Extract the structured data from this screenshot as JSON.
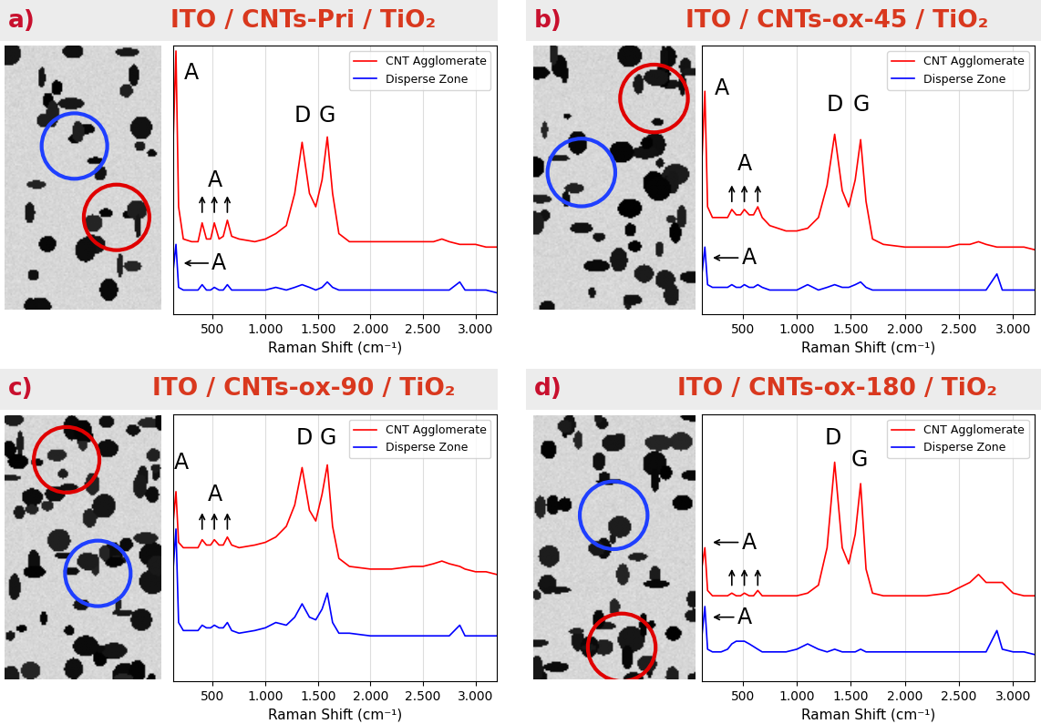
{
  "chart_data": [
    {
      "panel": "a)",
      "title": "ITO / CNTs-Pri / TiO₂",
      "type": "line",
      "xlabel": "Raman Shift (cm⁻¹)",
      "x": [
        120,
        150,
        175,
        220,
        300,
        360,
        399,
        440,
        480,
        515,
        560,
        600,
        639,
        680,
        750,
        900,
        1000,
        1100,
        1200,
        1280,
        1350,
        1420,
        1480,
        1540,
        1590,
        1640,
        1700,
        1800,
        2000,
        2200,
        2400,
        2500,
        2600,
        2680,
        2750,
        2850,
        2900,
        3000,
        3100,
        3200
      ],
      "xlim": [
        120,
        3200
      ],
      "xticks": [
        500,
        {
          "value": 1000,
          "label": "1.000"
        },
        {
          "value": 1500,
          "label": "1.500"
        },
        {
          "value": 2000,
          "label": "2.000"
        },
        {
          "value": 2500,
          "label": "2.500"
        },
        {
          "value": 3000,
          "label": "3.000"
        }
      ],
      "ylim": [
        0,
        100
      ],
      "tick_labels": "x",
      "grid": true,
      "legend": "upper right",
      "series": [
        {
          "name": "CNT Agglomerate",
          "color": "#ff0000",
          "values": [
            60,
            98,
            40,
            28,
            27,
            27,
            34,
            28,
            28,
            34,
            28,
            29,
            35,
            29,
            28,
            27,
            28,
            30,
            33,
            45,
            64,
            45,
            40,
            50,
            66,
            45,
            30,
            27,
            27,
            27,
            27,
            27,
            27,
            28,
            27,
            26,
            26,
            26,
            25,
            25
          ]
        },
        {
          "name": "Disperse Zone",
          "color": "#0000ff",
          "values": [
            15,
            26,
            10,
            9,
            9,
            9,
            11,
            9,
            9,
            10,
            9,
            9,
            11,
            9,
            9,
            9,
            9,
            10,
            9,
            10,
            11,
            10,
            9,
            10,
            12,
            10,
            9,
            9,
            9,
            9,
            9,
            9,
            9,
            9,
            9,
            12,
            9,
            9,
            9,
            8
          ]
        }
      ],
      "annotations": [
        {
          "text": "A",
          "x": 300,
          "y": 90
        },
        {
          "text": "A",
          "x": 520,
          "y": 50
        },
        {
          "text": "D",
          "x": 1350,
          "y": 74
        },
        {
          "text": "G",
          "x": 1590,
          "y": 74
        },
        {
          "text": "A",
          "x": 560,
          "y": 19
        }
      ],
      "arrows": [
        {
          "from": [
            399,
            37
          ],
          "to": [
            399,
            45
          ]
        },
        {
          "from": [
            515,
            37
          ],
          "to": [
            515,
            45
          ]
        },
        {
          "from": [
            639,
            37
          ],
          "to": [
            639,
            45
          ]
        },
        {
          "from": [
            480,
            19
          ],
          "to": [
            200,
            19
          ]
        }
      ]
    },
    {
      "panel": "b)",
      "title": "ITO / CNTs-ox-45 / TiO₂",
      "type": "line",
      "xlabel": "Raman Shift (cm⁻¹)",
      "x": [
        120,
        150,
        175,
        220,
        300,
        360,
        399,
        440,
        480,
        515,
        560,
        600,
        639,
        680,
        750,
        900,
        1000,
        1100,
        1200,
        1280,
        1350,
        1420,
        1480,
        1540,
        1590,
        1640,
        1700,
        1800,
        2000,
        2200,
        2400,
        2500,
        2600,
        2680,
        2750,
        2850,
        2900,
        3000,
        3100,
        3200
      ],
      "xlim": [
        120,
        3200
      ],
      "xticks": [
        500,
        {
          "value": 1000,
          "label": "1.000"
        },
        {
          "value": 1500,
          "label": "1.500"
        },
        {
          "value": 2000,
          "label": "2.000"
        },
        {
          "value": 2500,
          "label": "2.500"
        },
        {
          "value": 3000,
          "label": "3.000"
        }
      ],
      "ylim": [
        0,
        100
      ],
      "tick_labels": "x",
      "grid": true,
      "legend": "upper right",
      "series": [
        {
          "name": "CNT Agglomerate",
          "color": "#ff0000",
          "values": [
            55,
            83,
            40,
            36,
            36,
            36,
            39,
            37,
            37,
            39,
            37,
            37,
            40,
            36,
            33,
            31,
            31,
            32,
            36,
            48,
            67,
            46,
            40,
            50,
            65,
            42,
            28,
            26,
            25,
            25,
            25,
            26,
            26,
            27,
            26,
            25,
            25,
            25,
            25,
            24
          ]
        },
        {
          "name": "Disperse Zone",
          "color": "#0000ff",
          "values": [
            14,
            25,
            11,
            10,
            10,
            10,
            11,
            10,
            10,
            11,
            10,
            10,
            11,
            10,
            9,
            9,
            9,
            11,
            9,
            10,
            11,
            10,
            10,
            11,
            12,
            10,
            9,
            9,
            9,
            9,
            9,
            9,
            9,
            9,
            9,
            15,
            9,
            9,
            9,
            9
          ]
        }
      ],
      "annotations": [
        {
          "text": "A",
          "x": 310,
          "y": 84
        },
        {
          "text": "A",
          "x": 520,
          "y": 56
        },
        {
          "text": "D",
          "x": 1350,
          "y": 78
        },
        {
          "text": "G",
          "x": 1600,
          "y": 78
        },
        {
          "text": "A",
          "x": 560,
          "y": 21
        }
      ],
      "arrows": [
        {
          "from": [
            399,
            41
          ],
          "to": [
            399,
            49
          ]
        },
        {
          "from": [
            515,
            41
          ],
          "to": [
            515,
            49
          ]
        },
        {
          "from": [
            639,
            41
          ],
          "to": [
            639,
            49
          ]
        },
        {
          "from": [
            480,
            21
          ],
          "to": [
            200,
            21
          ]
        }
      ]
    },
    {
      "panel": "c)",
      "title": "ITO / CNTs-ox-90 / TiO₂",
      "type": "line",
      "xlabel": "Raman Shift (cm⁻¹)",
      "x": [
        120,
        150,
        175,
        220,
        300,
        360,
        399,
        440,
        480,
        515,
        560,
        600,
        639,
        680,
        750,
        900,
        1000,
        1100,
        1200,
        1280,
        1350,
        1420,
        1480,
        1540,
        1590,
        1640,
        1700,
        1800,
        2000,
        2200,
        2400,
        2500,
        2600,
        2680,
        2750,
        2850,
        2900,
        3000,
        3100,
        3200
      ],
      "xlim": [
        120,
        3200
      ],
      "xticks": [
        500,
        {
          "value": 1000,
          "label": "1.000"
        },
        {
          "value": 1500,
          "label": "1.500"
        },
        {
          "value": 2000,
          "label": "2.000"
        },
        {
          "value": 2500,
          "label": "2.500"
        },
        {
          "value": 3000,
          "label": "3.000"
        }
      ],
      "ylim": [
        0,
        100
      ],
      "tick_labels": "x",
      "grid": true,
      "legend": "upper right",
      "series": [
        {
          "name": "CNT Agglomerate",
          "color": "#ff0000",
          "values": [
            58,
            71,
            52,
            50,
            50,
            50,
            53,
            51,
            51,
            53,
            51,
            51,
            54,
            51,
            50,
            51,
            52,
            54,
            58,
            66,
            80,
            64,
            60,
            70,
            81,
            58,
            46,
            43,
            42,
            42,
            43,
            43,
            44,
            45,
            44,
            43,
            42,
            41,
            41,
            40
          ]
        },
        {
          "name": "Disperse Zone",
          "color": "#0000ff",
          "values": [
            40,
            57,
            22,
            19,
            19,
            19,
            21,
            20,
            20,
            21,
            20,
            20,
            22,
            19,
            18,
            19,
            20,
            22,
            21,
            24,
            29,
            24,
            23,
            27,
            33,
            22,
            18,
            18,
            17,
            17,
            17,
            17,
            17,
            17,
            17,
            21,
            17,
            17,
            17,
            17
          ]
        }
      ],
      "annotations": [
        {
          "text": "A",
          "x": 200,
          "y": 82
        },
        {
          "text": "A",
          "x": 520,
          "y": 70
        },
        {
          "text": "D",
          "x": 1370,
          "y": 91
        },
        {
          "text": "G",
          "x": 1600,
          "y": 91
        }
      ],
      "arrows": [
        {
          "from": [
            399,
            56
          ],
          "to": [
            399,
            64
          ]
        },
        {
          "from": [
            515,
            56
          ],
          "to": [
            515,
            64
          ]
        },
        {
          "from": [
            639,
            56
          ],
          "to": [
            639,
            64
          ]
        }
      ]
    },
    {
      "panel": "d)",
      "title": "ITO / CNTs-ox-180 / TiO₂",
      "type": "line",
      "xlabel": "Raman Shift (cm⁻¹)",
      "x": [
        120,
        150,
        175,
        220,
        300,
        360,
        399,
        440,
        480,
        515,
        560,
        600,
        639,
        680,
        750,
        900,
        1000,
        1100,
        1200,
        1280,
        1350,
        1420,
        1480,
        1540,
        1590,
        1640,
        1700,
        1800,
        2000,
        2200,
        2400,
        2500,
        2600,
        2680,
        2750,
        2850,
        2900,
        3000,
        3100,
        3200
      ],
      "xlim": [
        120,
        3200
      ],
      "xticks": [
        500,
        {
          "value": 1000,
          "label": "1.000"
        },
        {
          "value": 1500,
          "label": "1.500"
        },
        {
          "value": 2000,
          "label": "2.000"
        },
        {
          "value": 2500,
          "label": "2.500"
        },
        {
          "value": 3000,
          "label": "3.000"
        }
      ],
      "ylim": [
        0,
        100
      ],
      "tick_labels": "x",
      "grid": true,
      "legend": "upper right",
      "series": [
        {
          "name": "CNT Agglomerate",
          "color": "#ff0000",
          "values": [
            42,
            50,
            34,
            32,
            32,
            32,
            33,
            32,
            32,
            33,
            32,
            32,
            34,
            32,
            32,
            32,
            32,
            33,
            36,
            50,
            82,
            50,
            44,
            55,
            74,
            42,
            33,
            32,
            32,
            32,
            33,
            35,
            37,
            40,
            37,
            37,
            37,
            33,
            32,
            32
          ]
        },
        {
          "name": "Disperse Zone",
          "color": "#0000ff",
          "values": [
            16,
            28,
            12,
            11,
            11,
            12,
            14,
            15,
            15,
            15,
            14,
            13,
            12,
            11,
            11,
            11,
            12,
            14,
            12,
            11,
            12,
            11,
            11,
            11,
            12,
            11,
            11,
            11,
            11,
            11,
            11,
            11,
            11,
            11,
            11,
            19,
            12,
            11,
            11,
            10
          ]
        }
      ],
      "annotations": [
        {
          "text": "A",
          "x": 560,
          "y": 52
        },
        {
          "text": "D",
          "x": 1330,
          "y": 91
        },
        {
          "text": "G",
          "x": 1580,
          "y": 83
        },
        {
          "text": "A",
          "x": 520,
          "y": 24
        }
      ],
      "arrows": [
        {
          "from": [
            480,
            52
          ],
          "to": [
            200,
            52
          ]
        },
        {
          "from": [
            399,
            35
          ],
          "to": [
            399,
            43
          ]
        },
        {
          "from": [
            515,
            35
          ],
          "to": [
            515,
            43
          ]
        },
        {
          "from": [
            639,
            35
          ],
          "to": [
            639,
            43
          ]
        },
        {
          "from": [
            440,
            24
          ],
          "to": [
            200,
            24
          ]
        }
      ]
    }
  ]
}
